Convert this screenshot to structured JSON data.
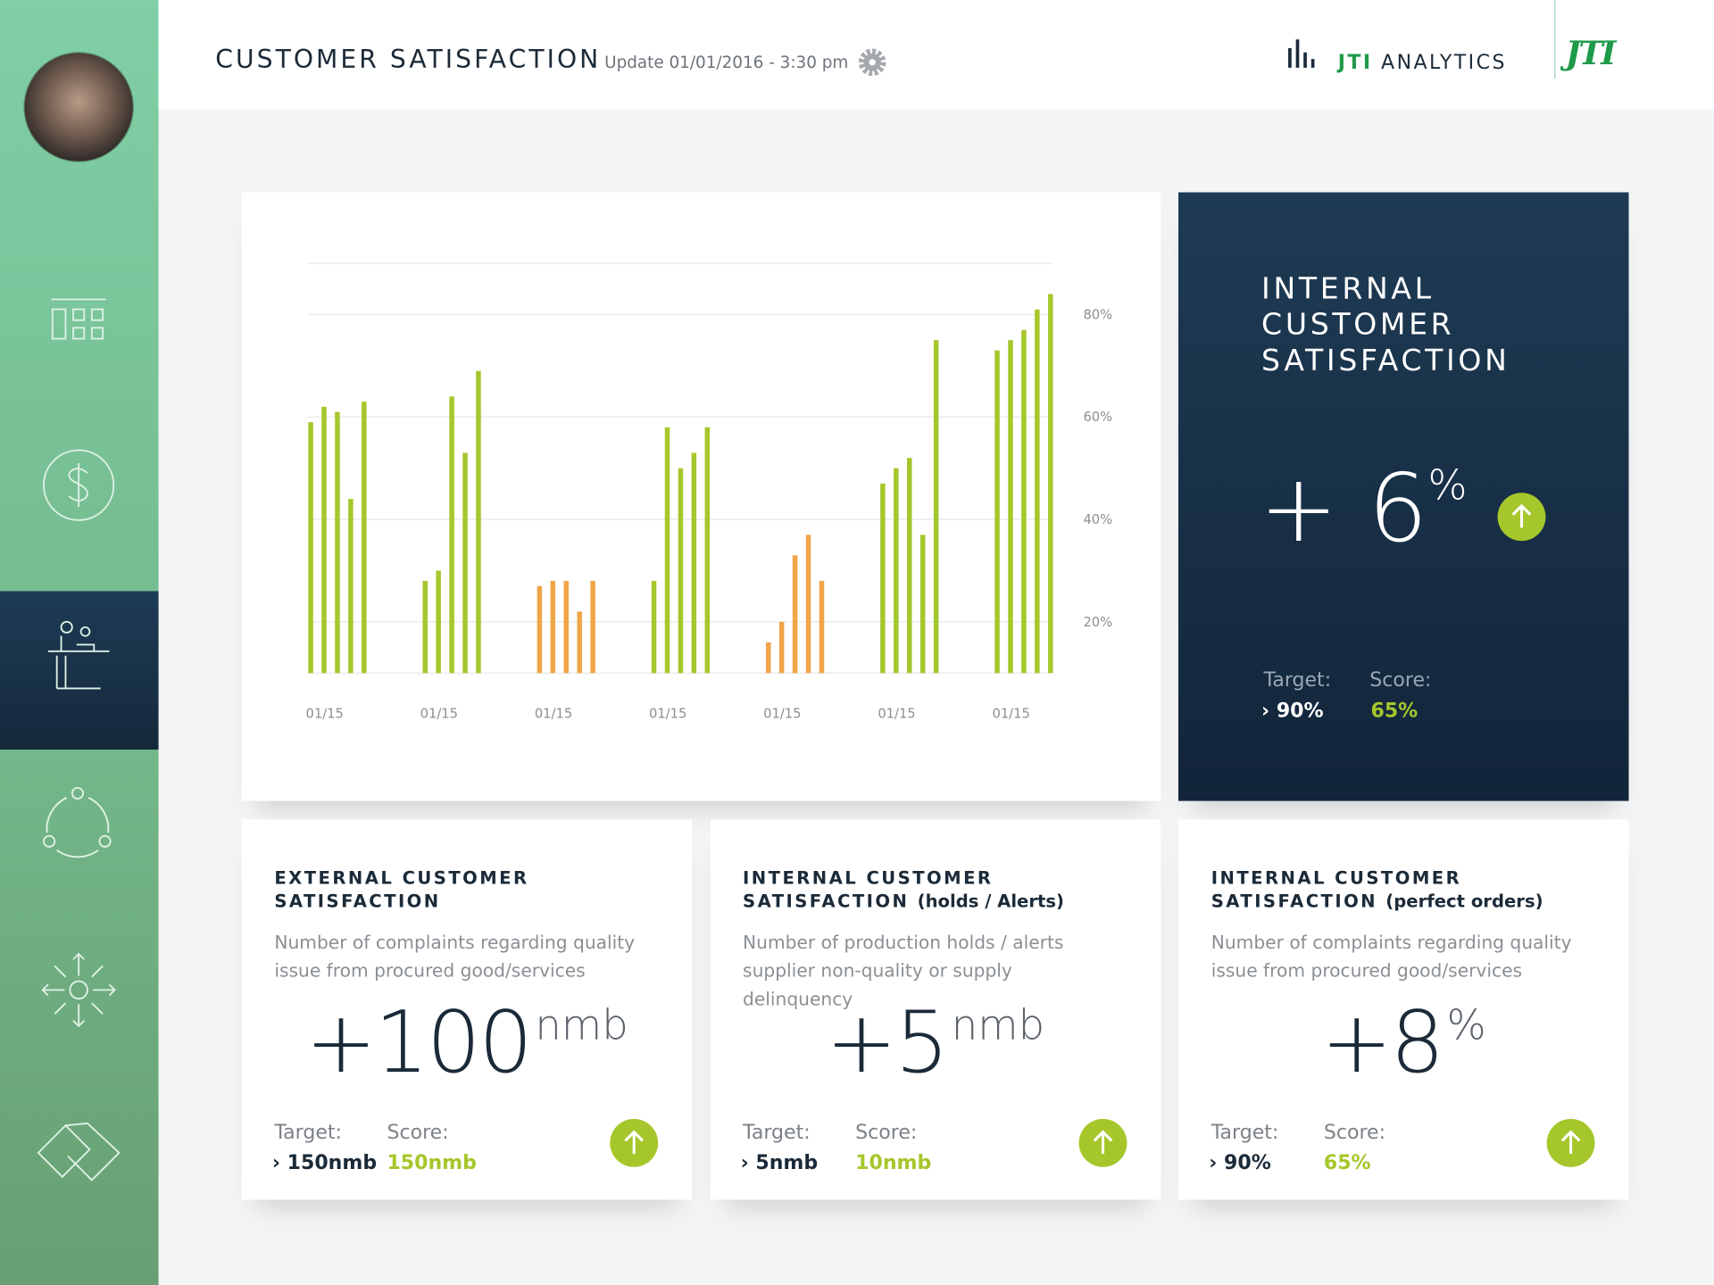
{
  "header": {
    "title": "CUSTOMER SATISFACTION",
    "update": "Update 01/01/2016 - 3:30 pm",
    "brand": "JTI",
    "brand_suffix": "ANALYTICS",
    "logo": "JTI"
  },
  "chart_data": {
    "type": "grouped-bar",
    "groups": [
      {
        "category": "01/15",
        "color": "#a5c72b",
        "values": [
          59,
          62,
          61,
          44,
          63
        ]
      },
      {
        "category": "01/15",
        "color": "#a5c72b",
        "values": [
          28,
          30,
          64,
          53,
          69
        ]
      },
      {
        "category": "01/15",
        "color": "#f0a548",
        "values": [
          27,
          28,
          28,
          22,
          28
        ]
      },
      {
        "category": "01/15",
        "color": "#a5c72b",
        "values": [
          28,
          58,
          50,
          53,
          58
        ]
      },
      {
        "category": "01/15",
        "color": "#f0a548",
        "values": [
          16,
          20,
          33,
          37,
          28
        ]
      },
      {
        "category": "01/15",
        "color": "#a5c72b",
        "values": [
          47,
          50,
          52,
          37,
          75
        ]
      },
      {
        "category": "01/15",
        "color": "#a5c72b",
        "values": [
          73,
          75,
          77,
          81,
          84
        ]
      }
    ],
    "ylim": [
      10,
      90
    ],
    "yticks": [
      {
        "value": 20,
        "label": "20%"
      },
      {
        "value": 40,
        "label": "40%"
      },
      {
        "value": 60,
        "label": "60%"
      },
      {
        "value": 80,
        "label": "80%"
      }
    ],
    "grid": true
  },
  "highlight": {
    "title": "INTERNAL CUSTOMER SATISFACTION",
    "value": "+ 6",
    "unit": "%",
    "target_label": "Target:",
    "target": "90%",
    "score_label": "Score:",
    "score": "65%"
  },
  "cards": [
    {
      "title": "EXTERNAL CUSTOMER SATISFACTION",
      "description": "Number of complaints regarding quality issue from procured good/services",
      "value": "+100",
      "unit": "nmb",
      "target_label": "Target:",
      "target": "150nmb",
      "score_label": "Score:",
      "score": "150nmb"
    },
    {
      "title": "INTERNAL CUSTOMER SATISFACTION",
      "note": "(holds / Alerts)",
      "description": "Number of production holds / alerts supplier non-quality or supply delinquency",
      "value": "+5",
      "unit": "nmb",
      "target_label": "Target:",
      "target": "5nmb",
      "score_label": "Score:",
      "score": "10nmb"
    },
    {
      "title": "INTERNAL CUSTOMER SATISFACTION",
      "note": "(perfect orders)",
      "description": "Number of complaints regarding quality issue from procured good/services",
      "value": "+8",
      "unit": "%",
      "target_label": "Target:",
      "target": "90%",
      "score_label": "Score:",
      "score": "65%"
    }
  ]
}
